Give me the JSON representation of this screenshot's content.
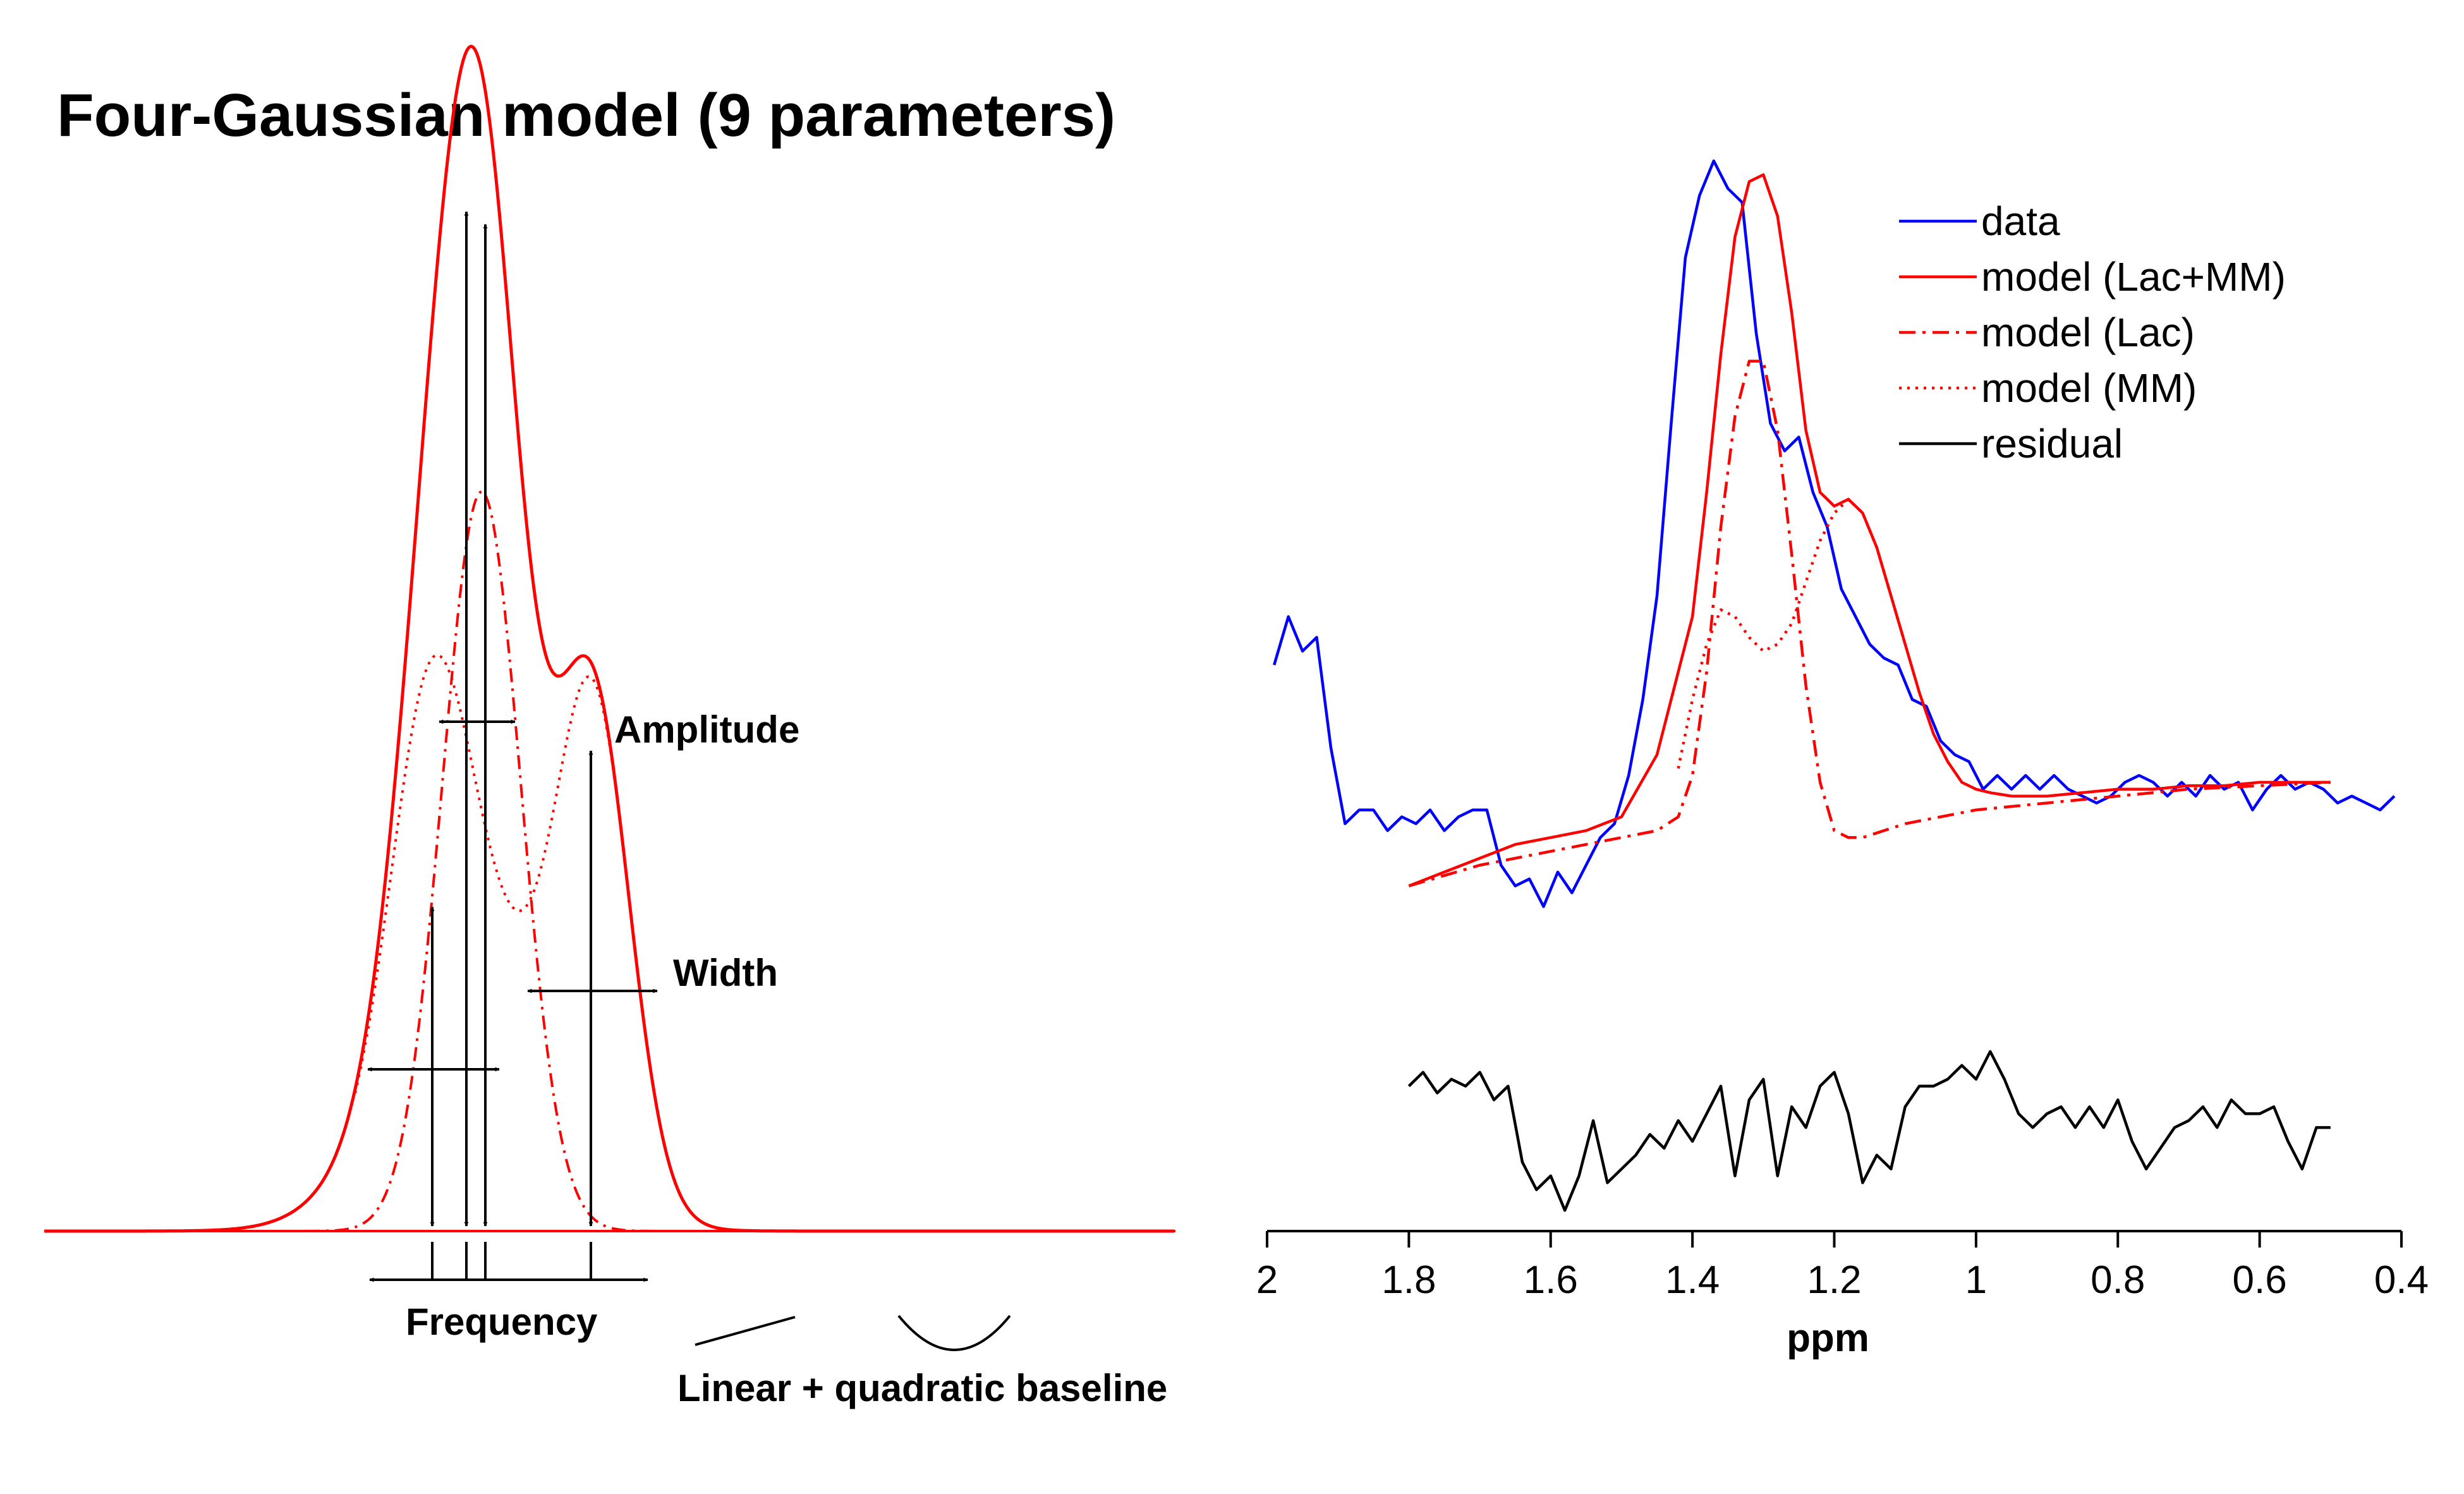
{
  "title": "Four-Gaussian model (9 parameters)",
  "colors": {
    "data": "#0000ff",
    "model": "#ff0000",
    "residual": "#000000"
  },
  "schematic": {
    "labels": {
      "amplitude": "Amplitude",
      "width": "Width",
      "frequency": "Frequency",
      "baseline": "Linear + quadratic baseline"
    }
  },
  "chart_data": {
    "type": "line",
    "xlabel": "ppm",
    "ylabel": "",
    "x_reversed": true,
    "xlim": [
      2,
      0.4
    ],
    "xticks": [
      2,
      1.8,
      1.6,
      1.4,
      1.2,
      1,
      0.8,
      0.6,
      0.4
    ],
    "xtick_labels": [
      "2",
      "1.8",
      "1.6",
      "1.4",
      "1.2",
      "1",
      "0.8",
      "0.6",
      "0.4"
    ],
    "ylim": [
      -0.55,
      1.05
    ],
    "grid": false,
    "legend_position": "top-right",
    "legend": [
      "data",
      "model (Lac+MM)",
      "model (Lac)",
      "model (MM)",
      "residual"
    ],
    "series": [
      {
        "name": "data",
        "style": "solid",
        "color": "#0000ff",
        "x": [
          1.99,
          1.97,
          1.95,
          1.93,
          1.91,
          1.89,
          1.87,
          1.85,
          1.83,
          1.81,
          1.79,
          1.77,
          1.75,
          1.73,
          1.71,
          1.69,
          1.67,
          1.65,
          1.63,
          1.61,
          1.59,
          1.57,
          1.55,
          1.53,
          1.51,
          1.49,
          1.47,
          1.45,
          1.43,
          1.41,
          1.39,
          1.37,
          1.35,
          1.33,
          1.31,
          1.29,
          1.27,
          1.25,
          1.23,
          1.21,
          1.19,
          1.17,
          1.15,
          1.13,
          1.11,
          1.09,
          1.07,
          1.05,
          1.03,
          1.01,
          0.99,
          0.97,
          0.95,
          0.93,
          0.91,
          0.89,
          0.87,
          0.85,
          0.83,
          0.81,
          0.79,
          0.77,
          0.75,
          0.73,
          0.71,
          0.69,
          0.67,
          0.65,
          0.63,
          0.61,
          0.59,
          0.57,
          0.55,
          0.53,
          0.51,
          0.49,
          0.47,
          0.45,
          0.43,
          0.41
        ],
        "y": [
          0.27,
          0.34,
          0.29,
          0.31,
          0.15,
          0.04,
          0.06,
          0.06,
          0.03,
          0.05,
          0.04,
          0.06,
          0.03,
          0.05,
          0.06,
          0.06,
          -0.02,
          -0.05,
          -0.04,
          -0.08,
          -0.03,
          -0.06,
          -0.02,
          0.02,
          0.04,
          0.11,
          0.22,
          0.37,
          0.62,
          0.86,
          0.95,
          1.0,
          0.96,
          0.94,
          0.75,
          0.62,
          0.58,
          0.6,
          0.52,
          0.47,
          0.38,
          0.34,
          0.3,
          0.28,
          0.27,
          0.22,
          0.21,
          0.16,
          0.14,
          0.13,
          0.09,
          0.11,
          0.09,
          0.11,
          0.09,
          0.11,
          0.09,
          0.08,
          0.07,
          0.08,
          0.1,
          0.11,
          0.1,
          0.08,
          0.1,
          0.08,
          0.11,
          0.09,
          0.1,
          0.06,
          0.09,
          0.11,
          0.09,
          0.1,
          0.09,
          0.07,
          0.08,
          0.07,
          0.06,
          0.08
        ]
      },
      {
        "name": "model (Lac+MM)",
        "style": "solid",
        "color": "#ff0000",
        "x": [
          1.8,
          1.75,
          1.7,
          1.65,
          1.6,
          1.55,
          1.5,
          1.45,
          1.4,
          1.38,
          1.36,
          1.34,
          1.32,
          1.3,
          1.28,
          1.26,
          1.24,
          1.22,
          1.2,
          1.18,
          1.16,
          1.14,
          1.12,
          1.1,
          1.08,
          1.06,
          1.04,
          1.02,
          1.0,
          0.98,
          0.95,
          0.9,
          0.85,
          0.8,
          0.75,
          0.7,
          0.65,
          0.6,
          0.55,
          0.5
        ],
        "y": [
          -0.05,
          -0.03,
          -0.01,
          0.01,
          0.02,
          0.03,
          0.05,
          0.14,
          0.34,
          0.52,
          0.72,
          0.89,
          0.97,
          0.98,
          0.92,
          0.78,
          0.61,
          0.52,
          0.5,
          0.51,
          0.49,
          0.44,
          0.37,
          0.3,
          0.23,
          0.17,
          0.13,
          0.1,
          0.09,
          0.085,
          0.08,
          0.08,
          0.085,
          0.09,
          0.09,
          0.095,
          0.095,
          0.1,
          0.1,
          0.1
        ]
      },
      {
        "name": "model (Lac)",
        "style": "dashdot",
        "color": "#ff0000",
        "x": [
          1.8,
          1.7,
          1.6,
          1.5,
          1.45,
          1.42,
          1.4,
          1.38,
          1.36,
          1.34,
          1.32,
          1.3,
          1.28,
          1.26,
          1.24,
          1.22,
          1.2,
          1.18,
          1.16,
          1.1,
          1.0,
          0.9,
          0.8,
          0.7,
          0.6,
          0.5
        ],
        "y": [
          -0.05,
          -0.02,
          0.0,
          0.02,
          0.03,
          0.05,
          0.11,
          0.26,
          0.47,
          0.63,
          0.71,
          0.71,
          0.61,
          0.43,
          0.24,
          0.1,
          0.03,
          0.02,
          0.02,
          0.04,
          0.06,
          0.07,
          0.08,
          0.09,
          0.095,
          0.1
        ]
      },
      {
        "name": "model (MM)",
        "style": "dotted",
        "color": "#ff0000",
        "x": [
          1.42,
          1.4,
          1.38,
          1.36,
          1.34,
          1.32,
          1.3,
          1.28,
          1.26,
          1.24,
          1.22,
          1.2,
          1.18,
          1.16,
          1.14,
          1.12,
          1.1
        ],
        "y": [
          0.12,
          0.22,
          0.3,
          0.35,
          0.34,
          0.31,
          0.29,
          0.3,
          0.33,
          0.39,
          0.45,
          0.49,
          0.51,
          0.49,
          0.44,
          0.37,
          0.3
        ]
      },
      {
        "name": "residual",
        "style": "solid",
        "color": "#000000",
        "x": [
          1.8,
          1.78,
          1.76,
          1.74,
          1.72,
          1.7,
          1.68,
          1.66,
          1.64,
          1.62,
          1.6,
          1.58,
          1.56,
          1.54,
          1.52,
          1.5,
          1.48,
          1.46,
          1.44,
          1.42,
          1.4,
          1.38,
          1.36,
          1.34,
          1.32,
          1.3,
          1.28,
          1.26,
          1.24,
          1.22,
          1.2,
          1.18,
          1.16,
          1.14,
          1.12,
          1.1,
          1.08,
          1.06,
          1.04,
          1.02,
          1.0,
          0.98,
          0.96,
          0.94,
          0.92,
          0.9,
          0.88,
          0.86,
          0.84,
          0.82,
          0.8,
          0.78,
          0.76,
          0.74,
          0.72,
          0.7,
          0.68,
          0.66,
          0.64,
          0.62,
          0.6,
          0.58,
          0.56,
          0.54,
          0.52,
          0.5
        ],
        "y": [
          -0.34,
          -0.32,
          -0.35,
          -0.33,
          -0.34,
          -0.32,
          -0.36,
          -0.34,
          -0.45,
          -0.49,
          -0.47,
          -0.52,
          -0.47,
          -0.39,
          -0.48,
          -0.46,
          -0.44,
          -0.41,
          -0.43,
          -0.39,
          -0.42,
          -0.38,
          -0.34,
          -0.47,
          -0.36,
          -0.33,
          -0.47,
          -0.37,
          -0.4,
          -0.34,
          -0.32,
          -0.38,
          -0.48,
          -0.44,
          -0.46,
          -0.37,
          -0.34,
          -0.34,
          -0.33,
          -0.31,
          -0.33,
          -0.29,
          -0.33,
          -0.38,
          -0.4,
          -0.38,
          -0.37,
          -0.4,
          -0.37,
          -0.4,
          -0.36,
          -0.42,
          -0.46,
          -0.43,
          -0.4,
          -0.39,
          -0.37,
          -0.4,
          -0.36,
          -0.38,
          -0.38,
          -0.37,
          -0.42,
          -0.46,
          -0.4,
          -0.4
        ]
      }
    ]
  }
}
